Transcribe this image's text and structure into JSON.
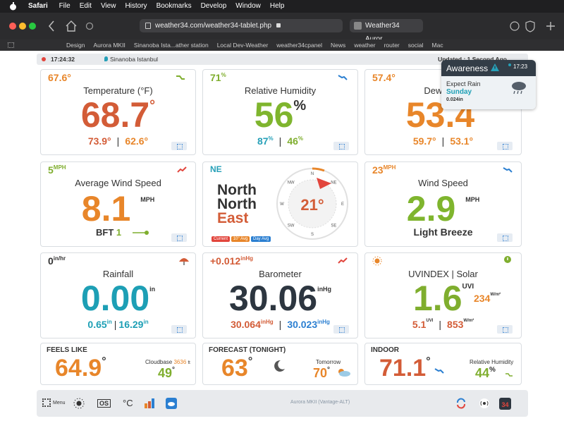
{
  "menu_bar": {
    "app": "Safari",
    "items": [
      "File",
      "Edit",
      "View",
      "History",
      "Bookmarks",
      "Develop",
      "Window",
      "Help"
    ]
  },
  "browser": {
    "url": "weather34.com/weather34-tablet.php",
    "tab": "Weather34 Auror...",
    "bookmarks": [
      "Design",
      "Aurora MKII",
      "Sinanoba Ista...ather station",
      "Local Dev-Weather",
      "weather34cpanel",
      "News",
      "weather",
      "router",
      "social",
      "Mac"
    ]
  },
  "status": {
    "time": "17:24:32",
    "location": "Sinanoba Istanbul",
    "updated": "Updated : 1 Second Ago"
  },
  "cards": [
    {
      "corner": "67.6°",
      "title": "Temperature (°F)",
      "value": "68.7",
      "unit": "°",
      "high": "73.9°",
      "low": "62.6°"
    },
    {
      "corner": "71",
      "corner_unit": "%",
      "title": "Relative Humidity",
      "value": "56",
      "unit": "%",
      "high": "87",
      "high_unit": "%",
      "low": "46",
      "low_unit": "%"
    },
    {
      "corner": "57.4°",
      "title": "Dewpoint",
      "value": "53.4",
      "unit": "°",
      "high": "59.7°",
      "low": "53.1°"
    },
    {
      "corner": "5",
      "corner_unit": "MPH",
      "title": "Average Wind Speed",
      "value": "8.1",
      "unit": "MPH",
      "scale": "BFT",
      "scale_value": "1"
    },
    {
      "corner": "NE",
      "direction": [
        "North",
        "North",
        "East"
      ],
      "degrees": "21°",
      "compass": [
        "N",
        "NE",
        "E",
        "SE",
        "S",
        "SW",
        "W",
        "NW"
      ],
      "legend": [
        "Current",
        "10° Avg",
        "Day Avg"
      ]
    },
    {
      "corner": "23",
      "corner_unit": "MPH",
      "title": "Wind Speed",
      "value": "2.9",
      "unit": "MPH",
      "description": "Light Breeze"
    },
    {
      "corner": "0",
      "corner_unit": "in/hr",
      "title": "Rainfall",
      "value": "0.00",
      "unit": "in",
      "month": "0.65",
      "month_unit": "in",
      "year": "16.29",
      "year_unit": "in"
    },
    {
      "corner": "+0.012",
      "corner_unit": "inHg",
      "title": "Barometer",
      "value": "30.06",
      "unit": "inHg",
      "high": "30.064",
      "high_unit": "inHg",
      "low": "30.023",
      "low_unit": "inHg"
    },
    {
      "title": "UVINDEX | Solar",
      "value": "1.6",
      "unit": "UVI",
      "solar": "234",
      "solar_unit": "W/m²",
      "uv_max": "5.1",
      "uv_max_unit": "UVI",
      "solar_max": "853",
      "solar_max_unit": "W/m²"
    },
    {
      "title": "FEELS LIKE",
      "value": "64.9",
      "unit": "°",
      "cloudbase_label": "Cloudbase",
      "cloudbase": "3636",
      "cloudbase_unit": "ft",
      "dewpoint": "49",
      "dewpoint_unit": "°"
    },
    {
      "title": "FORECAST (TONIGHT)",
      "value": "63",
      "unit": "°",
      "tomorrow_label": "Tomorrow",
      "tomorrow": "70",
      "tomorrow_unit": "°"
    },
    {
      "title": "INDOOR",
      "value": "71.1",
      "unit": "°",
      "humidity_label": "Relative Humidity",
      "humidity": "44",
      "humidity_unit": "%"
    }
  ],
  "alert": {
    "title": "Awareness",
    "time": "17:23",
    "message": "Expect Rain",
    "day": "Sunday",
    "amount": "0.024in"
  },
  "footer": {
    "menu": "Menu",
    "os": "OS",
    "units": "°C",
    "station": "Aurora MKII (Vantage-ALT)",
    "badge": "34"
  }
}
